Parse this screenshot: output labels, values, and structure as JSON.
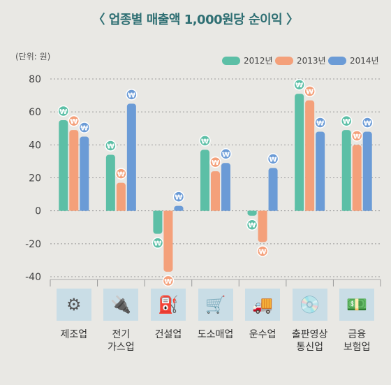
{
  "chart_data": {
    "type": "bar",
    "title": "〈 업종별 매출액 1,000원당 순이익 〉",
    "unit": "(단위: 원)",
    "categories": [
      "제조업",
      "전기\n가스업",
      "건설업",
      "도소매업",
      "운수업",
      "출판영상\n통신업",
      "금융\n보험업"
    ],
    "series": [
      {
        "name": "2012년",
        "color": "#5cbfa6",
        "values": [
          55,
          34,
          -14,
          37,
          -3,
          71,
          49
        ]
      },
      {
        "name": "2013년",
        "color": "#f4a07a",
        "values": [
          49,
          17,
          -37,
          24,
          -19,
          67,
          40
        ]
      },
      {
        "name": "2014년",
        "color": "#6b9bd6",
        "values": [
          45,
          65,
          3,
          29,
          26,
          48,
          48
        ]
      }
    ],
    "y_ticks": [
      "80",
      "60",
      "40",
      "20",
      "0",
      "-20",
      "-40"
    ],
    "ylim": [
      -40,
      80
    ],
    "marker_glyph": "₩",
    "icons": [
      "gears-icon",
      "plug-icon",
      "oil-pump-icon",
      "hand-truck-icon",
      "truck-icon",
      "disc-icon",
      "money-icon"
    ],
    "grid": true,
    "legend_position": "top-right"
  }
}
